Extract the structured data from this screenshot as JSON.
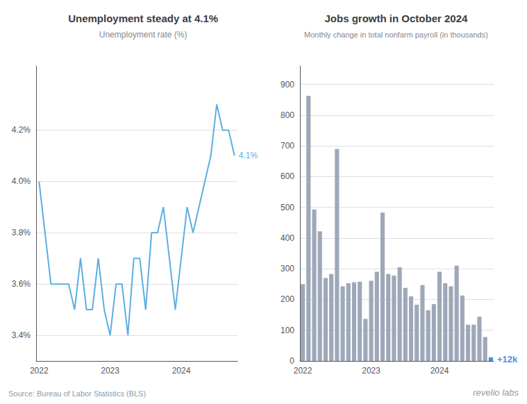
{
  "chart_data": [
    {
      "type": "line",
      "title": "Unemployment steady at 4.1%",
      "subtitle": "Unemployment rate (%)",
      "categories": [
        "2022",
        null,
        null,
        null,
        null,
        null,
        null,
        null,
        null,
        null,
        null,
        null,
        "2023",
        null,
        null,
        null,
        null,
        null,
        null,
        null,
        null,
        null,
        null,
        null,
        "2024",
        null,
        null,
        null,
        null,
        null,
        null,
        null,
        null,
        null
      ],
      "values": [
        4.0,
        3.8,
        3.6,
        3.6,
        3.6,
        3.6,
        3.5,
        3.7,
        3.5,
        3.5,
        3.7,
        3.5,
        3.4,
        3.6,
        3.6,
        3.4,
        3.7,
        3.7,
        3.5,
        3.8,
        3.8,
        3.9,
        3.7,
        3.5,
        3.7,
        3.9,
        3.8,
        3.9,
        4.0,
        4.1,
        4.3,
        4.2,
        4.2,
        4.1
      ],
      "color": "#5AAFE0",
      "ylim": [
        3.3,
        4.45
      ],
      "yticks": [
        {
          "value": 3.4,
          "label": "3.4%"
        },
        {
          "value": 3.6,
          "label": "3.6%"
        },
        {
          "value": 3.8,
          "label": "3.8%"
        },
        {
          "value": 4.0,
          "label": "4.0%"
        },
        {
          "value": 4.2,
          "label": "4.2%"
        }
      ],
      "grid": true,
      "annotation": {
        "text": "4.1%",
        "color": "#5AAFE0"
      }
    },
    {
      "type": "bar",
      "title": "Jobs growth in October 2024",
      "subtitle": "Monthly change in total nonfarm payroll (in thousands)",
      "categories": [
        "2022",
        null,
        null,
        null,
        null,
        null,
        null,
        null,
        null,
        null,
        null,
        null,
        "2023",
        null,
        null,
        null,
        null,
        null,
        null,
        null,
        null,
        null,
        null,
        null,
        "2024",
        null,
        null,
        null,
        null,
        null,
        null,
        null,
        null,
        null
      ],
      "values": [
        250,
        863,
        493,
        422,
        270,
        283,
        690,
        243,
        253,
        256,
        258,
        137,
        261,
        290,
        483,
        283,
        278,
        305,
        238,
        210,
        183,
        247,
        165,
        185,
        290,
        253,
        243,
        310,
        213,
        118,
        118,
        144,
        78,
        12
      ],
      "colors": [
        "#9EA8B8",
        "#9EA8B8",
        "#9EA8B8",
        "#9EA8B8",
        "#9EA8B8",
        "#9EA8B8",
        "#9EA8B8",
        "#9EA8B8",
        "#9EA8B8",
        "#9EA8B8",
        "#9EA8B8",
        "#9EA8B8",
        "#9EA8B8",
        "#9EA8B8",
        "#9EA8B8",
        "#9EA8B8",
        "#9EA8B8",
        "#9EA8B8",
        "#9EA8B8",
        "#9EA8B8",
        "#9EA8B8",
        "#9EA8B8",
        "#9EA8B8",
        "#9EA8B8",
        "#9EA8B8",
        "#9EA8B8",
        "#9EA8B8",
        "#9EA8B8",
        "#9EA8B8",
        "#9EA8B8",
        "#9EA8B8",
        "#9EA8B8",
        "#9EA8B8",
        "#4A90D9"
      ],
      "ylim": [
        0,
        960
      ],
      "yticks": [
        0,
        100,
        200,
        300,
        400,
        500,
        600,
        700,
        800,
        900
      ],
      "grid": true,
      "annotation": {
        "text": "+12k",
        "color": "#4A90D9"
      }
    }
  ],
  "source": "Source: Bureau of Labor Statistics (BLS)",
  "watermark": "revelio labs"
}
